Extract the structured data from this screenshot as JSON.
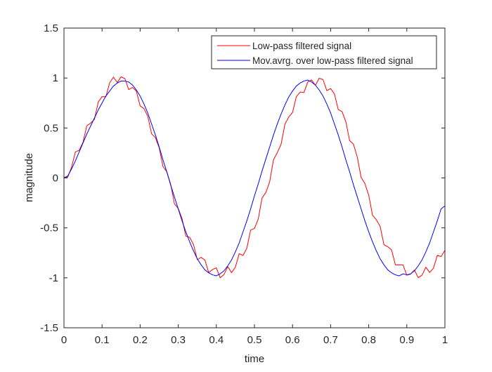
{
  "chart_data": {
    "type": "line",
    "xlabel": "time",
    "ylabel": "magnitude",
    "xlim": [
      0,
      1
    ],
    "ylim": [
      -1.5,
      1.5
    ],
    "x_ticks": [
      0,
      0.1,
      0.2,
      0.3,
      0.4,
      0.5,
      0.6,
      0.7,
      0.8,
      0.9,
      1
    ],
    "x_tick_labels": [
      "0",
      "0.1",
      "0.2",
      "0.3",
      "0.4",
      "0.5",
      "0.6",
      "0.7",
      "0.8",
      "0.9",
      "1"
    ],
    "y_ticks": [
      1.5,
      1,
      0.5,
      0,
      -0.5,
      -1,
      -1.5
    ],
    "y_tick_labels": [
      "1.5",
      "1",
      "0.5",
      "0",
      "-0.5",
      "-1",
      "-1.5"
    ],
    "grid": false,
    "legend_position": "top-right",
    "legend": [
      "Low-pass filtered signal",
      "Mov.avrg. over low-pass filtered signal"
    ],
    "series": [
      {
        "name": "Low-pass filtered signal",
        "color": "#ff0000",
        "x": [
          0,
          0.01,
          0.02,
          0.03,
          0.04,
          0.05,
          0.06,
          0.07,
          0.08,
          0.09,
          0.1,
          0.11,
          0.12,
          0.13,
          0.14,
          0.15,
          0.16,
          0.17,
          0.18,
          0.19,
          0.2,
          0.21,
          0.22,
          0.23,
          0.24,
          0.25,
          0.26,
          0.27,
          0.28,
          0.29,
          0.3,
          0.31,
          0.32,
          0.33,
          0.34,
          0.35,
          0.36,
          0.37,
          0.38,
          0.39,
          0.4,
          0.41,
          0.42,
          0.43,
          0.44,
          0.45,
          0.46,
          0.47,
          0.48,
          0.49,
          0.5,
          0.51,
          0.52,
          0.53,
          0.54,
          0.55,
          0.56,
          0.57,
          0.58,
          0.59,
          0.6,
          0.61,
          0.62,
          0.63,
          0.64,
          0.65,
          0.66,
          0.67,
          0.68,
          0.69,
          0.7,
          0.71,
          0.72,
          0.73,
          0.74,
          0.75,
          0.76,
          0.77,
          0.78,
          0.79,
          0.8,
          0.81,
          0.82,
          0.83,
          0.84,
          0.85,
          0.86,
          0.87,
          0.88,
          0.89,
          0.9,
          0.91,
          0.92,
          0.93,
          0.94,
          0.95,
          0.96,
          0.97,
          0.98,
          0.99,
          1
        ],
        "y": [
          0,
          0.0081,
          0.1081,
          0.2596,
          0.2779,
          0.3571,
          0.5221,
          0.5485,
          0.5863,
          0.7594,
          0.8138,
          0.8126,
          0.9527,
          1.0081,
          0.9551,
          1.0121,
          0.9932,
          0.8847,
          0.9058,
          0.8695,
          0.7213,
          0.6944,
          0.6178,
          0.4422,
          0.4037,
          0.302,
          0.1133,
          0.0622,
          -0.0613,
          -0.2588,
          -0.3064,
          -0.4074,
          -0.5832,
          -0.5948,
          -0.6658,
          -0.8185,
          -0.7953,
          -0.8226,
          -0.9474,
          -0.9173,
          -0.8998,
          -0.9997,
          -0.9675,
          -0.8878,
          -0.9479,
          -0.8935,
          -0.7583,
          -0.7756,
          -0.7042,
          -0.5211,
          -0.5063,
          -0.4115,
          -0.2006,
          -0.1465,
          -0.0392,
          0.1812,
          0.2532,
          0.3372,
          0.5376,
          0.6096,
          0.6552,
          0.8136,
          0.8595,
          0.8542,
          0.9604,
          0.9808,
          0.9267,
          0.9979,
          0.9845,
          0.8737,
          0.8943,
          0.8407,
          0.6843,
          0.6634,
          0.5617,
          0.3729,
          0.338,
          0.2081,
          0.0063,
          -0.0562,
          -0.1736,
          -0.3726,
          -0.4182,
          -0.4854,
          -0.6688,
          -0.6887,
          -0.7212,
          -0.8701,
          -0.8701,
          -0.8701,
          -0.9741,
          -0.9629,
          -0.9219,
          -0.9988,
          -0.9726,
          -0.8936,
          -0.9461,
          -0.9031,
          -0.7753,
          -0.7866,
          -0.7247
        ]
      },
      {
        "name": "Mov.avrg. over low-pass filtered signal",
        "color": "#0000ff",
        "x": [
          0,
          0.01,
          0.02,
          0.03,
          0.04,
          0.05,
          0.06,
          0.07,
          0.08,
          0.09,
          0.1,
          0.11,
          0.12,
          0.13,
          0.14,
          0.15,
          0.16,
          0.17,
          0.18,
          0.19,
          0.2,
          0.21,
          0.22,
          0.23,
          0.24,
          0.25,
          0.26,
          0.27,
          0.28,
          0.29,
          0.3,
          0.31,
          0.32,
          0.33,
          0.34,
          0.35,
          0.36,
          0.37,
          0.38,
          0.39,
          0.4,
          0.41,
          0.42,
          0.43,
          0.44,
          0.45,
          0.46,
          0.47,
          0.48,
          0.49,
          0.5,
          0.51,
          0.52,
          0.53,
          0.54,
          0.55,
          0.56,
          0.57,
          0.58,
          0.59,
          0.6,
          0.61,
          0.62,
          0.63,
          0.64,
          0.65,
          0.66,
          0.67,
          0.68,
          0.69,
          0.7,
          0.71,
          0.72,
          0.73,
          0.74,
          0.75,
          0.76,
          0.77,
          0.78,
          0.79,
          0.8,
          0.81,
          0.82,
          0.83,
          0.84,
          0.85,
          0.86,
          0.87,
          0.88,
          0.89,
          0.9,
          0.91,
          0.92,
          0.93,
          0.94,
          0.95,
          0.96,
          0.97,
          0.98,
          0.99,
          1
        ],
        "y": [
          0,
          0.02,
          0.09,
          0.17,
          0.26,
          0.35,
          0.44,
          0.52,
          0.6,
          0.68,
          0.75,
          0.82,
          0.87,
          0.92,
          0.95,
          0.97,
          0.97,
          0.96,
          0.93,
          0.88,
          0.82,
          0.74,
          0.65,
          0.54,
          0.43,
          0.31,
          0.18,
          0.06,
          -0.07,
          -0.19,
          -0.31,
          -0.43,
          -0.54,
          -0.64,
          -0.73,
          -0.81,
          -0.87,
          -0.92,
          -0.95,
          -0.97,
          -0.98,
          -0.96,
          -0.93,
          -0.88,
          -0.82,
          -0.74,
          -0.65,
          -0.54,
          -0.43,
          -0.31,
          -0.18,
          -0.06,
          0.07,
          0.19,
          0.31,
          0.43,
          0.54,
          0.64,
          0.73,
          0.81,
          0.87,
          0.92,
          0.95,
          0.97,
          0.98,
          0.96,
          0.93,
          0.88,
          0.82,
          0.74,
          0.65,
          0.54,
          0.43,
          0.31,
          0.18,
          0.06,
          -0.07,
          -0.19,
          -0.31,
          -0.43,
          -0.54,
          -0.64,
          -0.73,
          -0.81,
          -0.87,
          -0.92,
          -0.95,
          -0.97,
          -0.98,
          -0.96,
          -0.97,
          -0.96,
          -0.93,
          -0.88,
          -0.82,
          -0.74,
          -0.65,
          -0.54,
          -0.43,
          -0.31,
          -0.28
        ]
      }
    ]
  }
}
